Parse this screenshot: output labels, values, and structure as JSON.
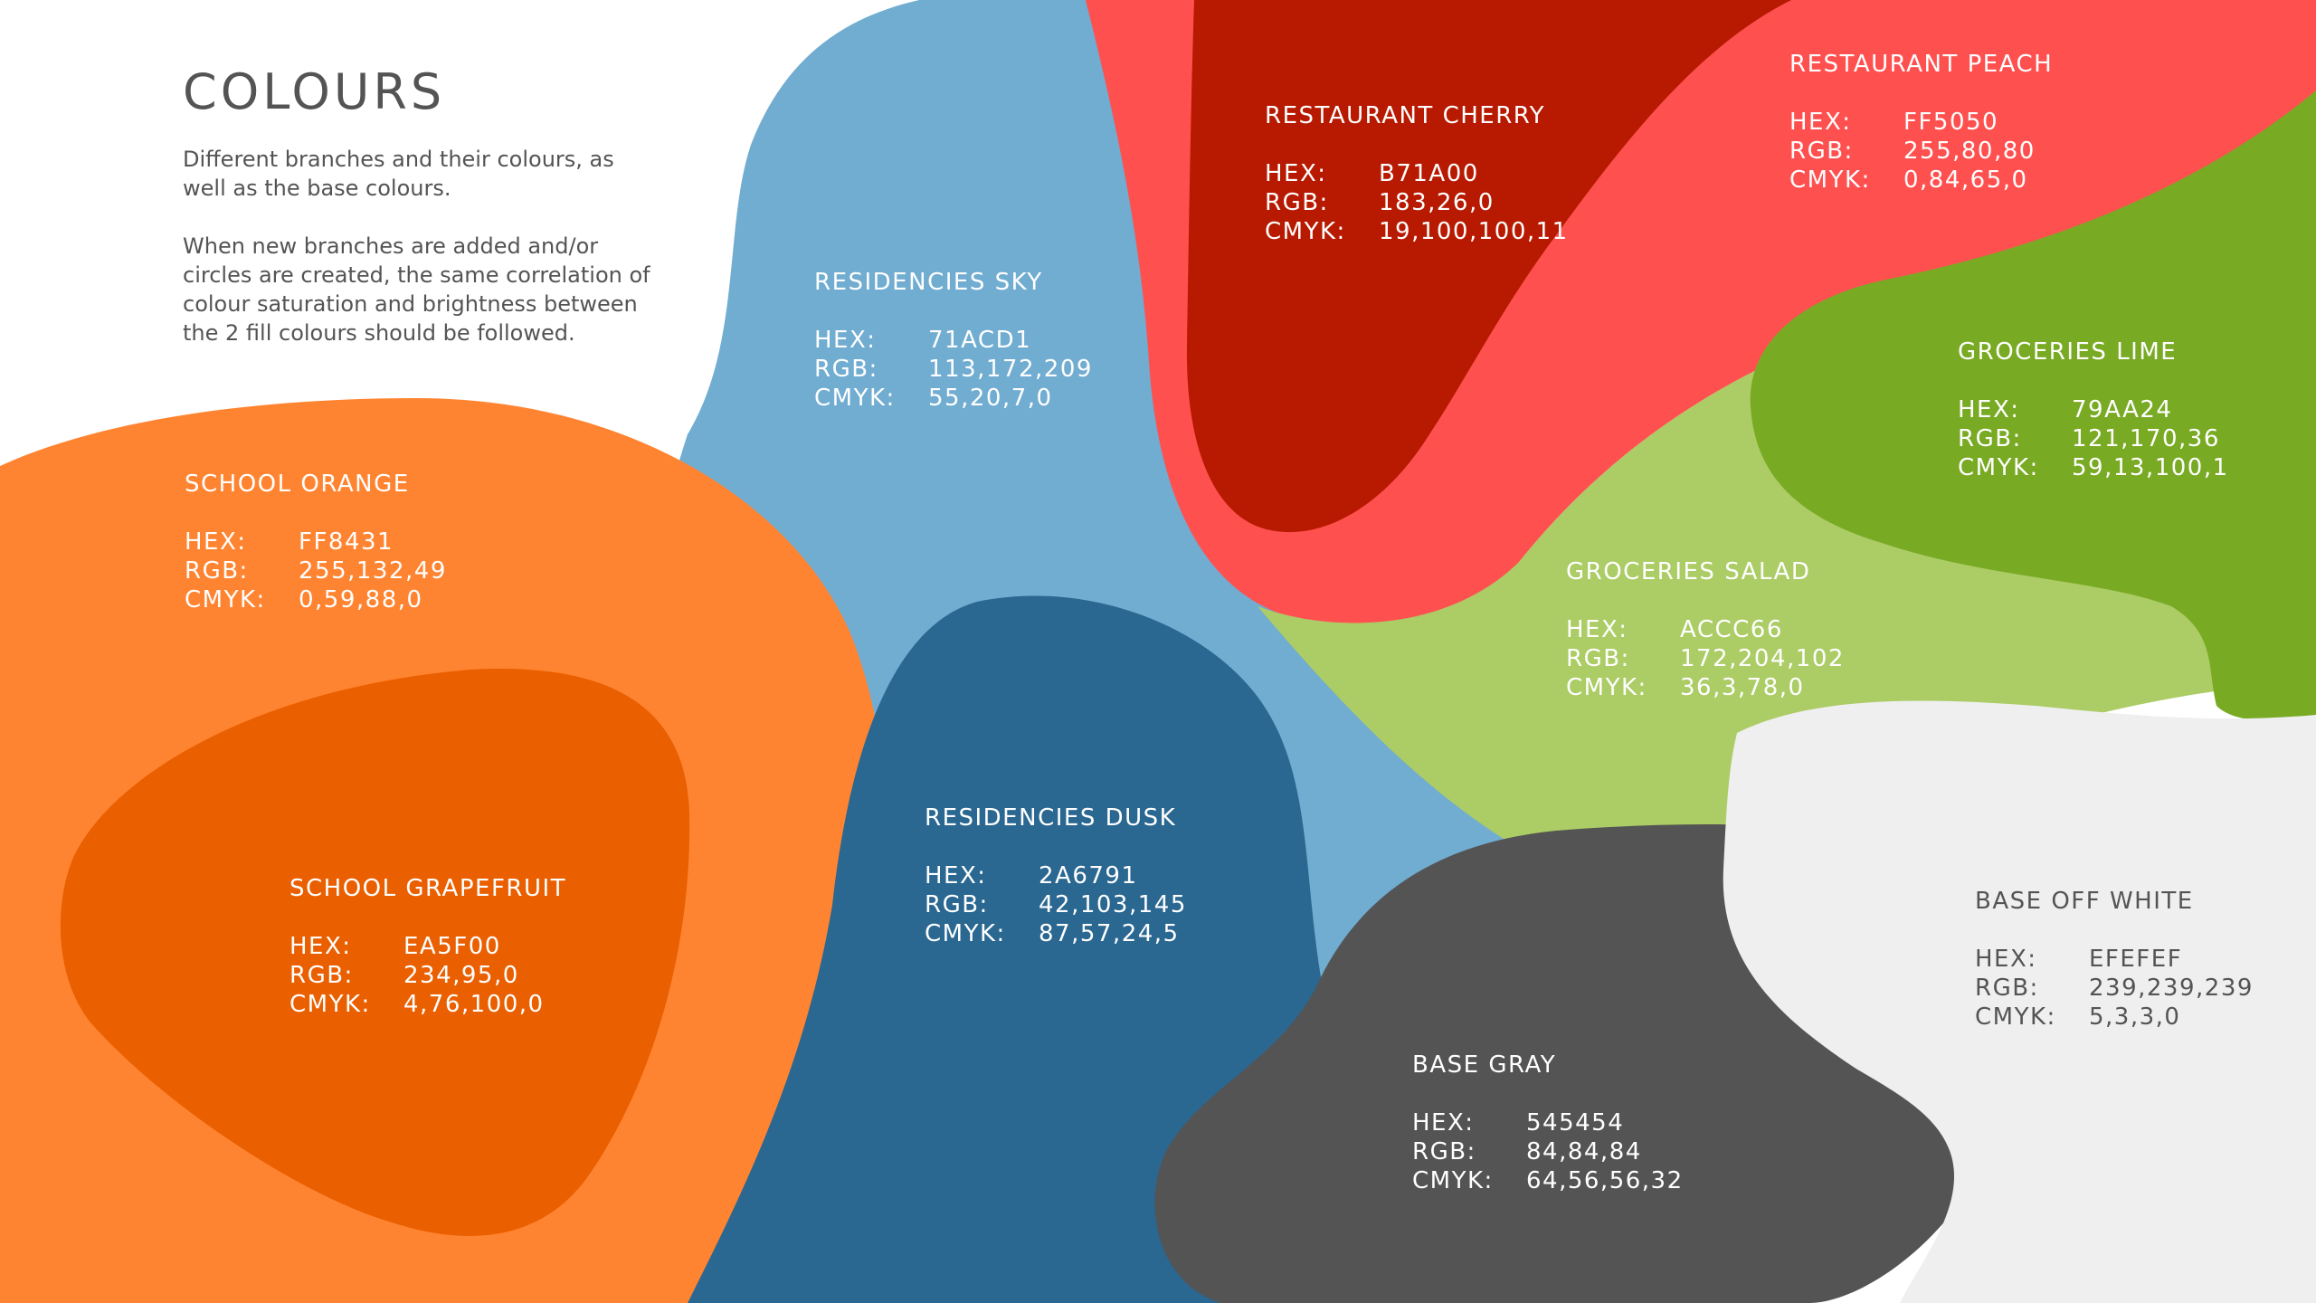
{
  "page": {
    "title": "COLOURS",
    "intro": [
      "Different branches and their colours, as well as the base colours.",
      "When new branches are added and/or circles are created, the same correlation of colour saturation and brightness between the 2 fill colours should be followed."
    ]
  },
  "labels": {
    "hex": "HEX:",
    "rgb": "RGB:",
    "cmyk": "CMYK:"
  },
  "colors": {
    "school_orange": {
      "name": "SCHOOL ORANGE",
      "hex": "FF8431",
      "rgb": "255,132,49",
      "cmyk": "0,59,88,0",
      "swatch": "#FF8431"
    },
    "school_grapefruit": {
      "name": "SCHOOL GRAPEFRUIT",
      "hex": "EA5F00",
      "rgb": "234,95,0",
      "cmyk": "4,76,100,0",
      "swatch": "#EA5F00"
    },
    "residencies_sky": {
      "name": "RESIDENCIES SKY",
      "hex": "71ACD1",
      "rgb": "113,172,209",
      "cmyk": "55,20,7,0",
      "swatch": "#71ACD1"
    },
    "residencies_dusk": {
      "name": "RESIDENCIES DUSK",
      "hex": "2A6791",
      "rgb": "42,103,145",
      "cmyk": "87,57,24,5",
      "swatch": "#2A6791"
    },
    "restaurant_cherry": {
      "name": "RESTAURANT CHERRY",
      "hex": "B71A00",
      "rgb": "183,26,0",
      "cmyk": "19,100,100,11",
      "swatch": "#B71A00"
    },
    "restaurant_peach": {
      "name": "RESTAURANT PEACH",
      "hex": "FF5050",
      "rgb": "255,80,80",
      "cmyk": "0,84,65,0",
      "swatch": "#FF5050"
    },
    "groceries_lime": {
      "name": "GROCERIES LIME",
      "hex": "79AA24",
      "rgb": "121,170,36",
      "cmyk": "59,13,100,1",
      "swatch": "#79AA24"
    },
    "groceries_salad": {
      "name": "GROCERIES SALAD",
      "hex": "ACCC66",
      "rgb": "172,204,102",
      "cmyk": "36,3,78,0",
      "swatch": "#ACCC66"
    },
    "base_gray": {
      "name": "BASE GRAY",
      "hex": "545454",
      "rgb": "84,84,84",
      "cmyk": "64,56,56,32",
      "swatch": "#545454"
    },
    "base_off_white": {
      "name": "BASE OFF WHITE",
      "hex": "EFEFEF",
      "rgb": "239,239,239",
      "cmyk": "5,3,3,0",
      "swatch": "#EFEFEF"
    }
  }
}
